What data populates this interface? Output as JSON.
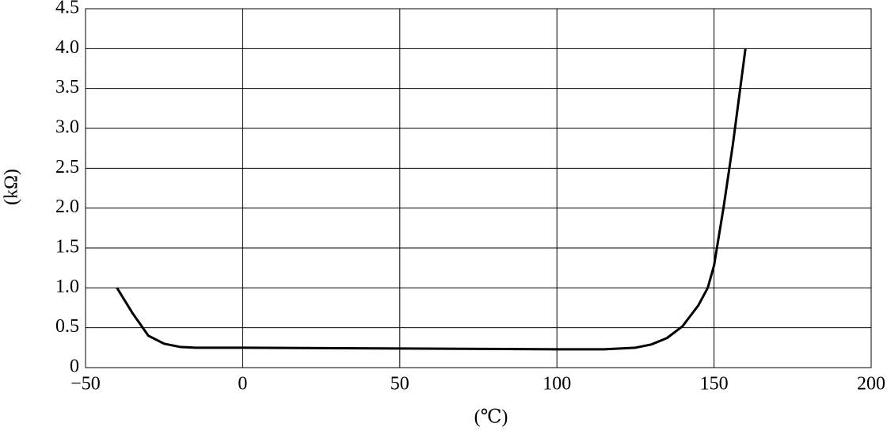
{
  "chart_data": {
    "type": "line",
    "x_label": "(℃)",
    "y_label": "(kΩ)",
    "series": [
      {
        "color": "#000000",
        "x": [
          -40,
          -35,
          -30,
          -25,
          -20,
          -15,
          0,
          50,
          100,
          115,
          125,
          130,
          135,
          140,
          145,
          148,
          150,
          153,
          156,
          160
        ],
        "values": [
          1.0,
          0.68,
          0.4,
          0.3,
          0.26,
          0.25,
          0.25,
          0.24,
          0.23,
          0.23,
          0.25,
          0.29,
          0.37,
          0.52,
          0.78,
          1.0,
          1.28,
          2.0,
          2.8,
          4.0
        ]
      }
    ],
    "xlim": [
      -50,
      200
    ],
    "xticks": [
      {
        "value": -50,
        "label": "−50"
      },
      0,
      50,
      100,
      150,
      200
    ],
    "ylim": [
      0,
      4.5
    ],
    "yticks": [
      0,
      0.5,
      {
        "value": 1,
        "label": "1.0"
      },
      1.5,
      {
        "value": 2,
        "label": "2.0"
      },
      2.5,
      {
        "value": 3,
        "label": "3.0"
      },
      3.5,
      {
        "value": 4,
        "label": "4.0"
      },
      4.5
    ],
    "grid": true
  }
}
